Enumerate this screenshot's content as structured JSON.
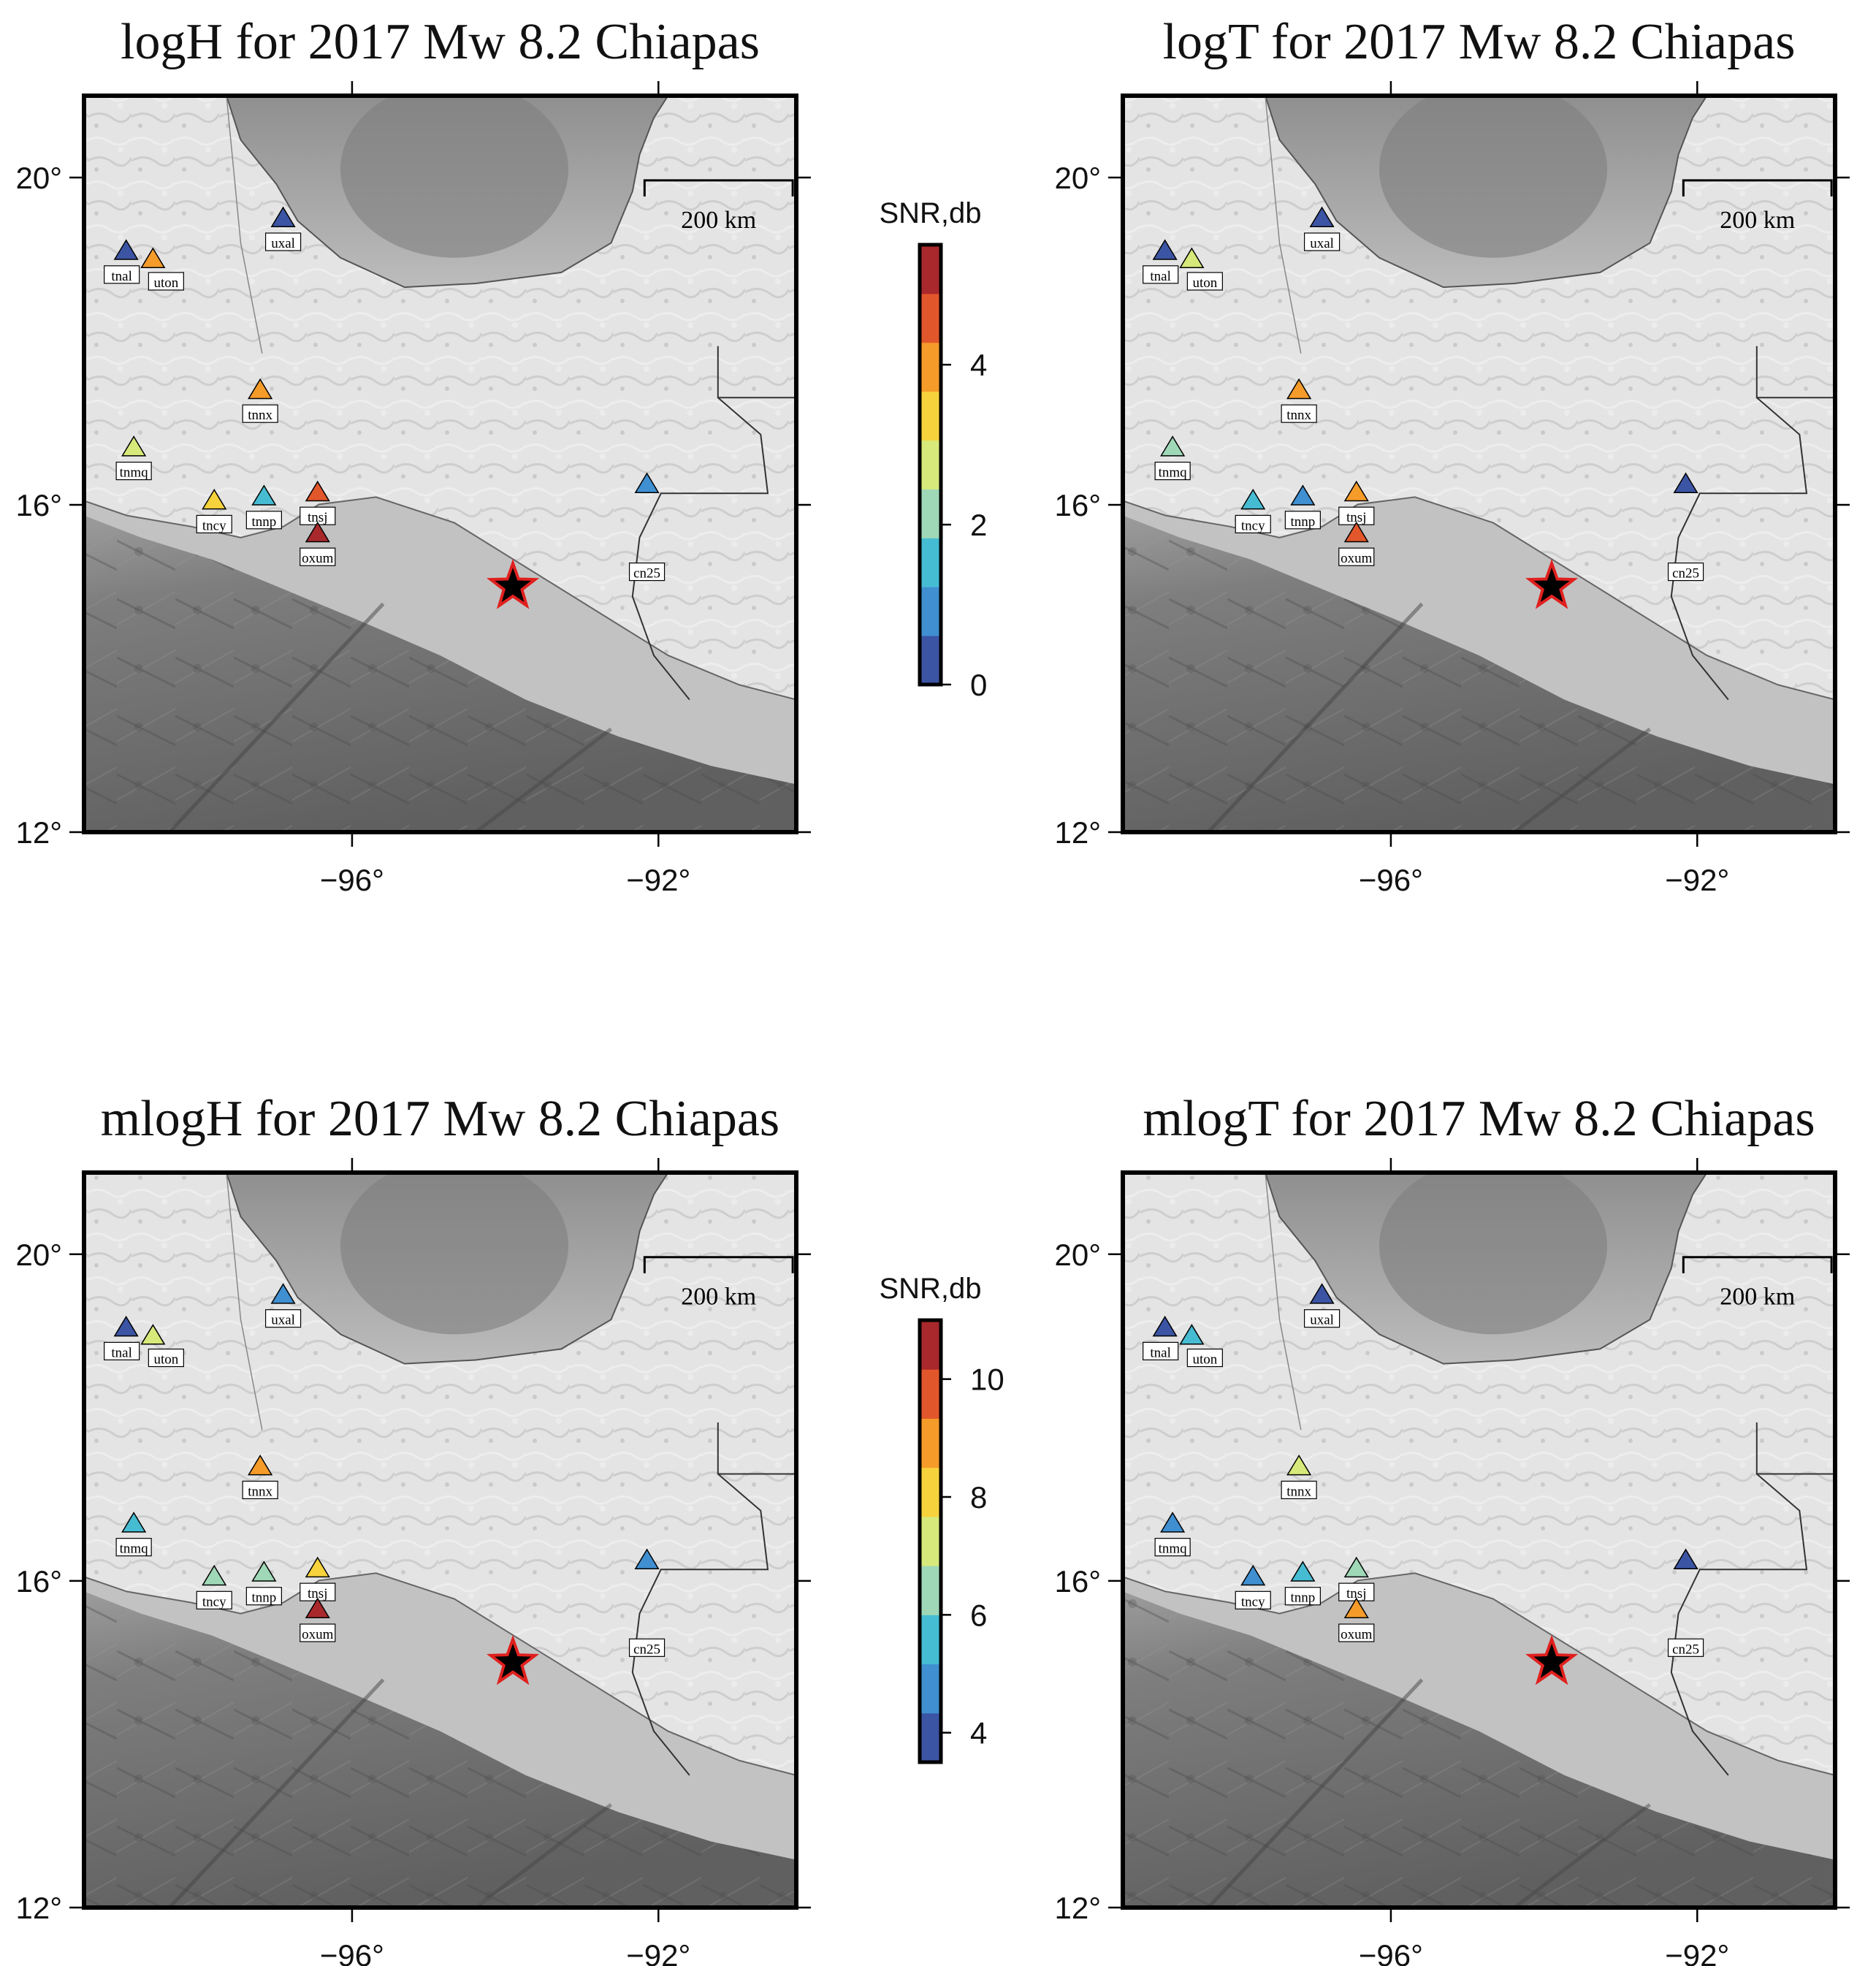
{
  "panels": [
    {
      "id": "logH",
      "title": "logH for 2017 Mw 8.2 Chiapas",
      "colorbar": "cb1",
      "station_values": {
        "uxal": 0.4,
        "tnal": 0.3,
        "uton": 3.7,
        "tnnx": 4.1,
        "tnmq": 2.8,
        "tncy": 3.6,
        "tnnp": 1.8,
        "tnsj": 4.3,
        "oxum": 5.3,
        "cn25": 0.8
      }
    },
    {
      "id": "logT",
      "title": "logT for 2017 Mw 8.2 Chiapas",
      "colorbar": "cb1",
      "station_values": {
        "uxal": 0.4,
        "tnal": 0.3,
        "uton": 3.0,
        "tnnx": 3.7,
        "tnmq": 1.9,
        "tncy": 1.6,
        "tnnp": 1.1,
        "tnsj": 3.7,
        "oxum": 4.5,
        "cn25": 0.5
      }
    },
    {
      "id": "mlogH",
      "title": "mlogH for 2017 Mw 8.2 Chiapas",
      "colorbar": "cb2",
      "station_values": {
        "uxal": 4.4,
        "tnal": 3.9,
        "uton": 7.0,
        "tnnx": 8.6,
        "tnmq": 5.3,
        "tncy": 6.4,
        "tnnp": 6.6,
        "tnsj": 7.7,
        "oxum": 10.6,
        "cn25": 4.6
      }
    },
    {
      "id": "mlogT",
      "title": "mlogT for 2017 Mw 8.2 Chiapas",
      "colorbar": "cb2",
      "station_values": {
        "uxal": 3.8,
        "tnal": 3.8,
        "uton": 5.2,
        "tnnx": 7.4,
        "tnmq": 4.6,
        "tncy": 4.9,
        "tnnp": 5.3,
        "tnsj": 6.5,
        "oxum": 8.9,
        "cn25": 3.9
      }
    }
  ],
  "map": {
    "lon_range": [
      -99.5,
      -90.2
    ],
    "lat_range": [
      12,
      21
    ],
    "x_ticks": [
      {
        "value": -96,
        "label": "−96°"
      },
      {
        "value": -92,
        "label": "−92°"
      }
    ],
    "y_ticks": [
      {
        "value": 20,
        "label": "20°"
      },
      {
        "value": 16,
        "label": "16°"
      },
      {
        "value": 12,
        "label": "12°"
      }
    ],
    "scale_bar_label": "200 km",
    "epicenter": {
      "lon": -93.9,
      "lat": 15.0,
      "marker": "black-star-red-outline"
    },
    "stations": [
      {
        "name": "uxal",
        "lon": -96.9,
        "lat": 19.5,
        "label": "uxal"
      },
      {
        "name": "tnal",
        "lon": -98.95,
        "lat": 19.1,
        "label": "tnal"
      },
      {
        "name": "uton",
        "lon": -98.6,
        "lat": 19.0,
        "label": "uton"
      },
      {
        "name": "tnnx",
        "lon": -97.2,
        "lat": 17.4,
        "label": "tnnx"
      },
      {
        "name": "tnmq",
        "lon": -98.85,
        "lat": 16.7,
        "label": "tnmq"
      },
      {
        "name": "tncy",
        "lon": -97.8,
        "lat": 16.05,
        "label": "tncy"
      },
      {
        "name": "tnnp",
        "lon": -97.15,
        "lat": 16.1,
        "label": "tnnp"
      },
      {
        "name": "tnsj",
        "lon": -96.45,
        "lat": 16.15,
        "label": "tnsj"
      },
      {
        "name": "oxum",
        "lon": -96.45,
        "lat": 15.65,
        "label": "oxum"
      },
      {
        "name": "cn25",
        "lon": -92.15,
        "lat": 16.25,
        "label": "cn25"
      }
    ]
  },
  "colorbars": {
    "cb1": {
      "label": "SNR,db",
      "min": 0,
      "max": 5.5,
      "ticks": [
        {
          "value": 0,
          "label": "0"
        },
        {
          "value": 2,
          "label": "2"
        },
        {
          "value": 4,
          "label": "4"
        }
      ]
    },
    "cb2": {
      "label": "SNR,db",
      "min": 3.5,
      "max": 11,
      "ticks": [
        {
          "value": 4,
          "label": "4"
        },
        {
          "value": 6,
          "label": "6"
        },
        {
          "value": 8,
          "label": "8"
        },
        {
          "value": 10,
          "label": "10"
        }
      ]
    }
  },
  "colors": {
    "palette": [
      "#3b54a3",
      "#3f8fd1",
      "#46bcd2",
      "#9fd8b7",
      "#d7e97a",
      "#f6d33c",
      "#f59b2a",
      "#e2562b",
      "#a8282b"
    ],
    "land": "#e4e4e4",
    "ocean_shallow": "#bfbfbf",
    "ocean_deep": "#6e6e6e",
    "star_outline": "#e0201e"
  }
}
